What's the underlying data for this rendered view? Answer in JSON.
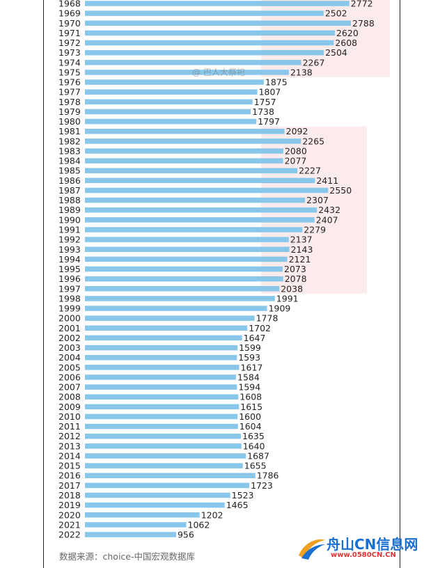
{
  "chart_data": {
    "type": "bar",
    "orientation": "horizontal",
    "categories": [
      "1968",
      "1969",
      "1970",
      "1971",
      "1972",
      "1973",
      "1974",
      "1975",
      "1976",
      "1977",
      "1978",
      "1979",
      "1980",
      "1981",
      "1982",
      "1983",
      "1984",
      "1985",
      "1986",
      "1987",
      "1988",
      "1989",
      "1990",
      "1991",
      "1992",
      "1993",
      "1994",
      "1995",
      "1996",
      "1997",
      "1998",
      "1999",
      "2000",
      "2001",
      "2002",
      "2003",
      "2004",
      "2005",
      "2006",
      "2007",
      "2008",
      "2009",
      "2010",
      "2011",
      "2012",
      "2013",
      "2014",
      "2015",
      "2016",
      "2017",
      "2018",
      "2019",
      "2020",
      "2021",
      "2022"
    ],
    "values": [
      2772,
      2502,
      2788,
      2620,
      2608,
      2504,
      2267,
      2138,
      1875,
      1807,
      1757,
      1738,
      1797,
      2092,
      2265,
      2080,
      2077,
      2227,
      2411,
      2550,
      2307,
      2432,
      2407,
      2279,
      2137,
      2143,
      2121,
      2073,
      2078,
      2038,
      1991,
      1909,
      1778,
      1702,
      1647,
      1599,
      1593,
      1617,
      1584,
      1594,
      1608,
      1615,
      1600,
      1604,
      1635,
      1640,
      1687,
      1655,
      1786,
      1723,
      1523,
      1465,
      1202,
      1062,
      956
    ],
    "bar_color": "#88c6ea",
    "highlight_color": "#fbe4e6",
    "highlight_ranges": [
      [
        "1968",
        "1975"
      ],
      [
        "1981",
        "1997"
      ]
    ],
    "grid": false,
    "legend": "none"
  },
  "source_note": "数据来源：choice-中国宏观数据库",
  "watermark": "@ 巴人大祭祀",
  "site_logo": {
    "name": "舟山CN信息网",
    "url": "www.0580CN.CN"
  }
}
